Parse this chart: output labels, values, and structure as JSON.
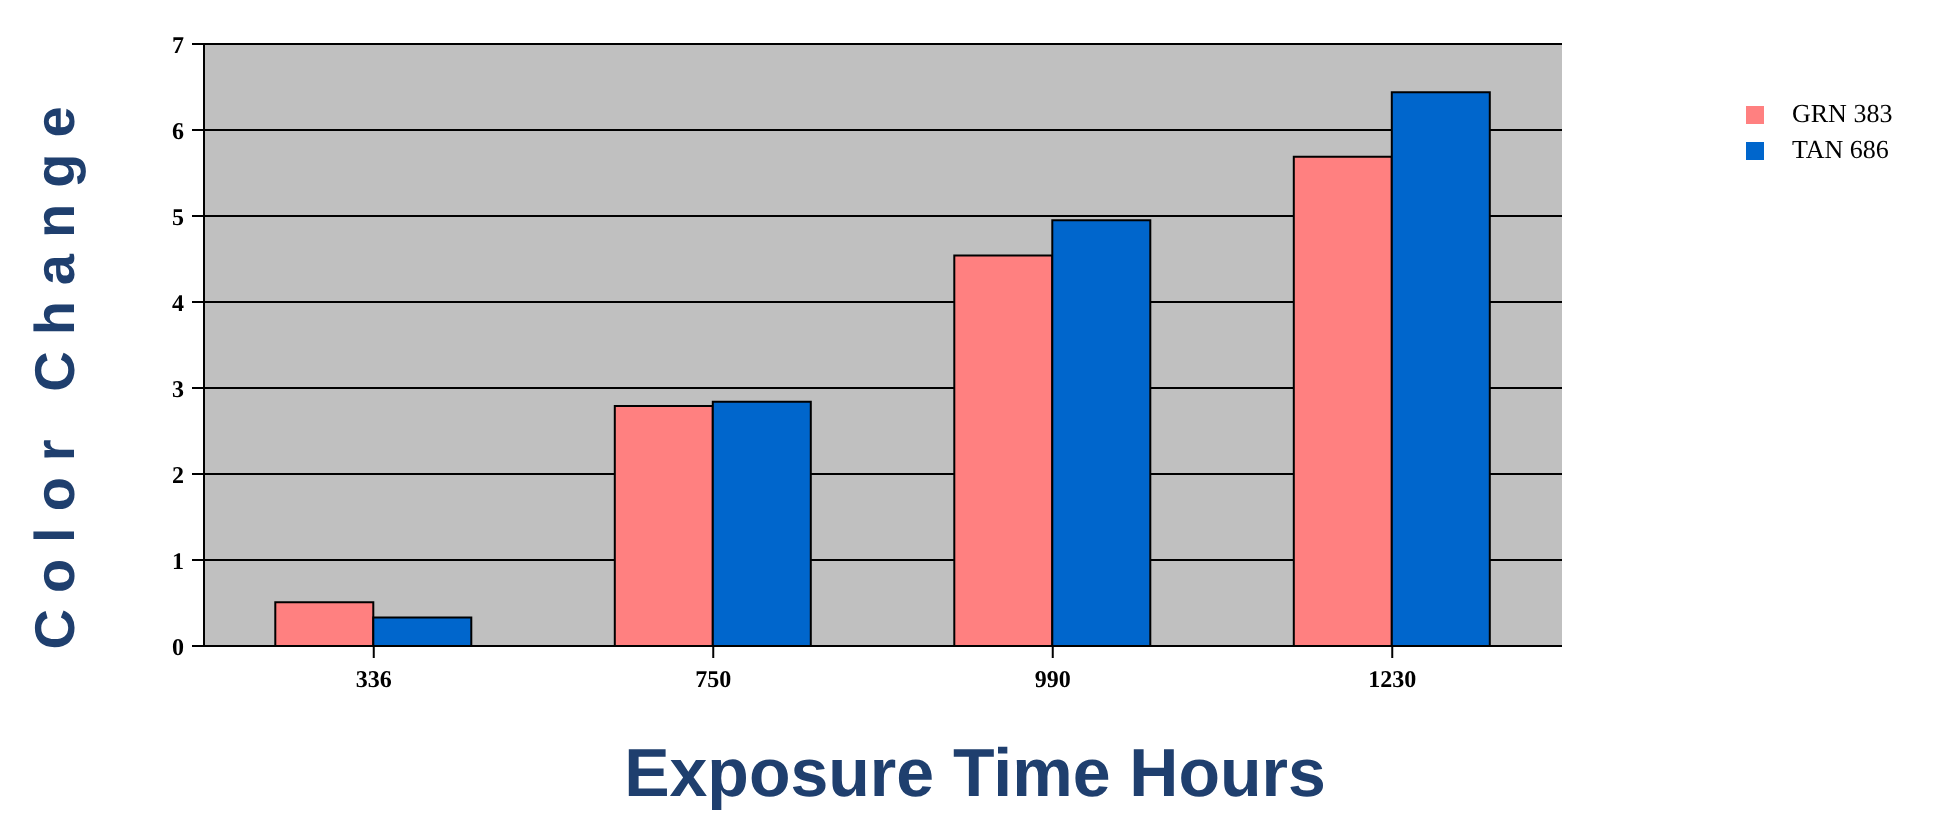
{
  "chart_data": {
    "type": "bar",
    "xlabel": "Exposure Time Hours",
    "ylabel": "Color Change",
    "categories": [
      "336",
      "750",
      "990",
      "1230"
    ],
    "series": [
      {
        "name": "GRN 383",
        "color": "#ff8080",
        "values": [
          0.51,
          2.79,
          4.54,
          5.69
        ]
      },
      {
        "name": "TAN 686",
        "color": "#0066cc",
        "values": [
          0.33,
          2.84,
          4.95,
          6.44
        ]
      }
    ],
    "ylim": [
      0,
      7
    ],
    "yticks": [
      0,
      1,
      2,
      3,
      4,
      5,
      6,
      7
    ],
    "grid": "y",
    "legend": "right"
  }
}
